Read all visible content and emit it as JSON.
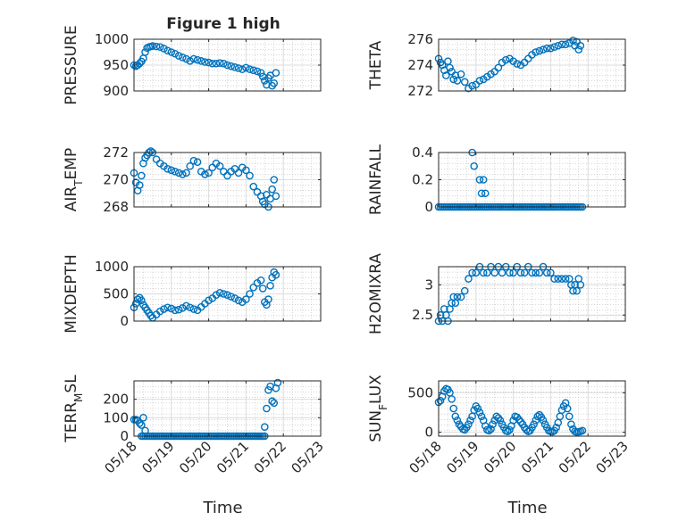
{
  "figure_title": "Figure 1 high",
  "xlabel": "Time",
  "x_tick_labels": [
    "05/18",
    "05/19",
    "05/20",
    "05/21",
    "05/22",
    "05/23"
  ],
  "colors": {
    "marker": "#0072bd",
    "axes": "#262626",
    "grid": "#bdbdbd"
  },
  "chart_data": [
    {
      "type": "scatter",
      "ylabel": "PRESSURE",
      "ylim": [
        900,
        1000
      ],
      "yticks": [
        900,
        950,
        1000
      ],
      "grid": true,
      "x": [
        18.0,
        18.05,
        18.1,
        18.15,
        18.2,
        18.25,
        18.3,
        18.35,
        18.4,
        18.45,
        18.5,
        18.6,
        18.7,
        18.8,
        18.9,
        19.0,
        19.1,
        19.2,
        19.3,
        19.4,
        19.5,
        19.6,
        19.7,
        19.8,
        19.9,
        20.0,
        20.1,
        20.2,
        20.3,
        20.4,
        20.5,
        20.6,
        20.7,
        20.8,
        20.9,
        21.0,
        21.1,
        21.2,
        21.3,
        21.4,
        21.45,
        21.5,
        21.55,
        21.6,
        21.65,
        21.7,
        21.75,
        21.8
      ],
      "y": [
        950,
        948,
        950,
        953,
        957,
        963,
        975,
        983,
        985,
        986,
        987,
        986,
        985,
        982,
        978,
        975,
        972,
        968,
        965,
        962,
        958,
        962,
        960,
        958,
        956,
        955,
        953,
        953,
        954,
        953,
        950,
        948,
        946,
        944,
        942,
        945,
        942,
        940,
        938,
        935,
        928,
        920,
        912,
        925,
        930,
        910,
        915,
        935
      ]
    },
    {
      "type": "scatter",
      "ylabel": "THETA",
      "ylim": [
        272,
        276
      ],
      "yticks": [
        272,
        274,
        276
      ],
      "grid": true,
      "x": [
        18.0,
        18.05,
        18.1,
        18.15,
        18.2,
        18.25,
        18.3,
        18.35,
        18.4,
        18.45,
        18.5,
        18.6,
        18.7,
        18.8,
        18.9,
        19.0,
        19.1,
        19.2,
        19.3,
        19.4,
        19.5,
        19.6,
        19.7,
        19.8,
        19.9,
        20.0,
        20.1,
        20.2,
        20.3,
        20.4,
        20.5,
        20.6,
        20.7,
        20.8,
        20.9,
        21.0,
        21.1,
        21.2,
        21.3,
        21.4,
        21.5,
        21.6,
        21.65,
        21.7,
        21.75,
        21.8
      ],
      "y": [
        274.5,
        274.2,
        274.0,
        273.6,
        273.2,
        274.3,
        273.8,
        273.5,
        272.9,
        273.2,
        272.8,
        273.3,
        272.7,
        272.2,
        272.4,
        272.5,
        272.8,
        272.9,
        273.1,
        273.3,
        273.5,
        273.8,
        274.2,
        274.4,
        274.5,
        274.3,
        274.1,
        274.0,
        274.2,
        274.5,
        274.8,
        275.0,
        275.1,
        275.2,
        275.3,
        275.3,
        275.4,
        275.5,
        275.6,
        275.6,
        275.7,
        275.9,
        275.5,
        275.8,
        275.2,
        275.5
      ]
    },
    {
      "type": "scatter",
      "ylabel": "AIR_TEMP",
      "ylabel_main": "AIR",
      "ylabel_sub": "T",
      "ylabel_rest": "EMP",
      "ylim": [
        268,
        272
      ],
      "yticks": [
        268,
        270,
        272
      ],
      "grid": true,
      "x": [
        18.0,
        18.05,
        18.1,
        18.15,
        18.2,
        18.25,
        18.3,
        18.35,
        18.4,
        18.45,
        18.5,
        18.6,
        18.7,
        18.8,
        18.9,
        19.0,
        19.1,
        19.2,
        19.3,
        19.4,
        19.5,
        19.6,
        19.7,
        19.8,
        19.9,
        20.0,
        20.1,
        20.2,
        20.3,
        20.4,
        20.5,
        20.6,
        20.7,
        20.8,
        20.9,
        21.0,
        21.1,
        21.2,
        21.3,
        21.4,
        21.45,
        21.5,
        21.55,
        21.6,
        21.65,
        21.7,
        21.75,
        21.8
      ],
      "y": [
        270.5,
        269.8,
        269.2,
        269.6,
        270.3,
        271.2,
        271.6,
        271.8,
        272.0,
        272.1,
        272.0,
        271.5,
        271.2,
        271.0,
        270.8,
        270.7,
        270.6,
        270.5,
        270.4,
        270.5,
        271.0,
        271.4,
        271.3,
        270.6,
        270.4,
        270.5,
        270.9,
        271.2,
        271.0,
        270.6,
        270.3,
        270.6,
        270.8,
        270.5,
        270.9,
        270.7,
        270.3,
        269.5,
        269.1,
        268.8,
        268.4,
        268.2,
        268.9,
        268.0,
        268.6,
        269.3,
        270.0,
        268.8
      ]
    },
    {
      "type": "scatter",
      "ylabel": "RAINFALL",
      "ylim": [
        0,
        0.4
      ],
      "yticks": [
        0,
        0.2,
        0.4
      ],
      "grid": true,
      "x_zero_range": [
        18.0,
        21.85
      ],
      "x_nonzero": [
        18.9,
        18.95,
        19.1,
        19.15,
        19.2,
        19.25
      ],
      "y_nonzero": [
        0.4,
        0.3,
        0.2,
        0.1,
        0.2,
        0.1
      ]
    },
    {
      "type": "scatter",
      "ylabel": "MIXDEPTH",
      "ylim": [
        0,
        1000
      ],
      "yticks": [
        0,
        500,
        1000
      ],
      "grid": true,
      "x": [
        18.0,
        18.05,
        18.1,
        18.15,
        18.2,
        18.25,
        18.3,
        18.35,
        18.4,
        18.45,
        18.5,
        18.6,
        18.7,
        18.8,
        18.9,
        19.0,
        19.1,
        19.2,
        19.3,
        19.4,
        19.5,
        19.6,
        19.7,
        19.8,
        19.9,
        20.0,
        20.1,
        20.2,
        20.3,
        20.4,
        20.5,
        20.6,
        20.7,
        20.8,
        20.9,
        21.0,
        21.1,
        21.2,
        21.3,
        21.4,
        21.45,
        21.5,
        21.55,
        21.6,
        21.65,
        21.7,
        21.75,
        21.8
      ],
      "y": [
        250,
        320,
        400,
        430,
        380,
        300,
        250,
        200,
        150,
        100,
        60,
        120,
        180,
        220,
        250,
        230,
        200,
        210,
        240,
        280,
        250,
        220,
        200,
        260,
        320,
        380,
        420,
        480,
        520,
        500,
        480,
        450,
        420,
        380,
        350,
        400,
        500,
        620,
        700,
        750,
        600,
        350,
        300,
        400,
        650,
        800,
        900,
        850
      ]
    },
    {
      "type": "scatter",
      "ylabel": "H2OMIXRA",
      "ylim": [
        2.4,
        3.3
      ],
      "yticks": [
        2.5,
        3
      ],
      "grid": true,
      "x": [
        18.0,
        18.05,
        18.1,
        18.15,
        18.2,
        18.25,
        18.3,
        18.35,
        18.4,
        18.45,
        18.5,
        18.6,
        18.7,
        18.8,
        18.9,
        19.0,
        19.1,
        19.2,
        19.3,
        19.4,
        19.5,
        19.6,
        19.7,
        19.8,
        19.9,
        20.0,
        20.1,
        20.2,
        20.3,
        20.4,
        20.5,
        20.6,
        20.7,
        20.8,
        20.9,
        21.0,
        21.1,
        21.2,
        21.3,
        21.4,
        21.5,
        21.55,
        21.6,
        21.65,
        21.7,
        21.75,
        21.8
      ],
      "y": [
        2.4,
        2.5,
        2.4,
        2.6,
        2.5,
        2.4,
        2.6,
        2.7,
        2.8,
        2.7,
        2.8,
        2.8,
        2.9,
        3.1,
        3.2,
        3.2,
        3.3,
        3.2,
        3.2,
        3.3,
        3.2,
        3.3,
        3.2,
        3.3,
        3.2,
        3.2,
        3.3,
        3.2,
        3.2,
        3.3,
        3.2,
        3.2,
        3.2,
        3.3,
        3.2,
        3.2,
        3.1,
        3.1,
        3.1,
        3.1,
        3.1,
        3.0,
        2.9,
        3.0,
        2.9,
        3.1,
        3.0
      ]
    },
    {
      "type": "scatter",
      "ylabel": "TERR_MSL",
      "ylabel_main": "TERR",
      "ylabel_sub": "M",
      "ylabel_rest": "SL",
      "ylim": [
        0,
        300
      ],
      "yticks": [
        0,
        100,
        200
      ],
      "grid": true,
      "x_zero_range": [
        18.2,
        21.5
      ],
      "x": [
        18.0,
        18.05,
        18.1,
        18.15,
        18.2,
        18.25,
        18.3,
        21.5,
        21.55,
        21.6,
        21.65,
        21.7,
        21.75,
        21.8,
        21.85
      ],
      "y": [
        90,
        90,
        85,
        70,
        60,
        100,
        30,
        50,
        150,
        250,
        270,
        190,
        180,
        260,
        290
      ]
    },
    {
      "type": "scatter",
      "ylabel": "SUN_FLUX",
      "ylabel_main": "SUN",
      "ylabel_sub": "F",
      "ylabel_rest": "LUX",
      "ylim": [
        -50,
        650
      ],
      "yticks": [
        0,
        500
      ],
      "grid": true,
      "x": [
        18.0,
        18.05,
        18.1,
        18.15,
        18.2,
        18.25,
        18.3,
        18.35,
        18.4,
        18.45,
        18.5,
        18.55,
        18.6,
        18.65,
        18.7,
        18.75,
        18.8,
        18.85,
        18.9,
        18.95,
        19.0,
        19.05,
        19.1,
        19.15,
        19.2,
        19.25,
        19.3,
        19.35,
        19.4,
        19.45,
        19.5,
        19.55,
        19.6,
        19.65,
        19.7,
        19.75,
        19.8,
        19.85,
        19.9,
        19.95,
        20.0,
        20.05,
        20.1,
        20.15,
        20.2,
        20.25,
        20.3,
        20.35,
        20.4,
        20.45,
        20.5,
        20.55,
        20.6,
        20.65,
        20.7,
        20.75,
        20.8,
        20.85,
        20.9,
        20.95,
        21.0,
        21.05,
        21.1,
        21.15,
        21.2,
        21.25,
        21.3,
        21.35,
        21.4,
        21.45,
        21.5,
        21.55,
        21.6,
        21.65,
        21.7,
        21.75,
        21.8,
        21.85
      ],
      "y": [
        380,
        400,
        450,
        520,
        550,
        540,
        500,
        420,
        300,
        200,
        150,
        100,
        70,
        40,
        30,
        60,
        100,
        150,
        200,
        280,
        330,
        300,
        250,
        200,
        150,
        80,
        30,
        20,
        40,
        100,
        150,
        200,
        180,
        150,
        100,
        60,
        20,
        10,
        30,
        80,
        150,
        200,
        190,
        160,
        130,
        100,
        60,
        30,
        10,
        20,
        60,
        100,
        150,
        200,
        220,
        190,
        150,
        100,
        60,
        20,
        10,
        5,
        20,
        60,
        120,
        200,
        280,
        330,
        370,
        300,
        200,
        100,
        40,
        10,
        0,
        5,
        10,
        20
      ]
    }
  ]
}
